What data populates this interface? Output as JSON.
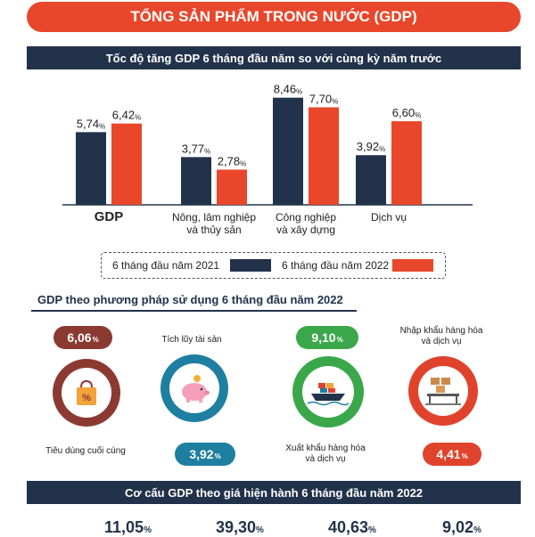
{
  "header": {
    "title": "TỔNG SẢN PHẨM TRONG NƯỚC (GDP)"
  },
  "section1": {
    "title": "Tốc độ tăng GDP 6 tháng đầu năm so với cùng kỳ năm trước"
  },
  "chart_data": {
    "type": "bar",
    "title": "Tốc độ tăng GDP 6 tháng đầu năm so với cùng kỳ năm trước",
    "categories": [
      "GDP",
      "Nông, lâm nghiệp và thủy sản",
      "Công nghiệp và xây dựng",
      "Dịch vụ"
    ],
    "category_lines": [
      [
        "GDP"
      ],
      [
        "Nông, lâm nghiệp",
        "và thủy sản"
      ],
      [
        "Công nghiệp",
        "và xây dựng"
      ],
      [
        "Dịch vụ"
      ]
    ],
    "series": [
      {
        "name": "6 tháng đầu năm 2021",
        "color": "#22324a",
        "values": [
          5.74,
          3.77,
          8.46,
          3.92
        ],
        "labels": [
          "5,74",
          "3,77",
          "8,46",
          "3,92"
        ]
      },
      {
        "name": "6 tháng đầu năm 2022",
        "color": "#e8472b",
        "values": [
          6.42,
          2.78,
          7.7,
          6.6
        ],
        "labels": [
          "6,42",
          "2,78",
          "7,70",
          "6,60"
        ]
      }
    ],
    "unit": "%",
    "ylim": [
      0,
      9
    ],
    "legend": "bottom"
  },
  "section2": {
    "title": "GDP theo phương pháp sử dụng 6 tháng đầu năm 2022",
    "items": [
      {
        "label": "Tiêu dùng cuối cùng",
        "value": "6,06",
        "unit": "%",
        "color": "#8b3a32",
        "icon": "shopping-bag-icon"
      },
      {
        "label": "Tích lũy tài sản",
        "value": "3,92",
        "unit": "%",
        "color": "#1e7fa0",
        "icon": "piggy-bank-icon"
      },
      {
        "label_lines": [
          "Xuất khẩu hàng hóa",
          "và dịch vụ"
        ],
        "value": "9,10",
        "unit": "%",
        "color": "#3aa84a",
        "icon": "cargo-ship-icon"
      },
      {
        "label_lines": [
          "Nhập khẩu hàng hóa",
          "và dịch vụ"
        ],
        "value": "4,41",
        "unit": "%",
        "color": "#e0432c",
        "icon": "warehouse-icon"
      }
    ]
  },
  "section3": {
    "title": "Cơ cấu GDP theo giá hiện hành 6 tháng đầu năm 2022",
    "values": [
      "11,05",
      "39,30",
      "40,63",
      "9,02"
    ],
    "unit": "%"
  }
}
